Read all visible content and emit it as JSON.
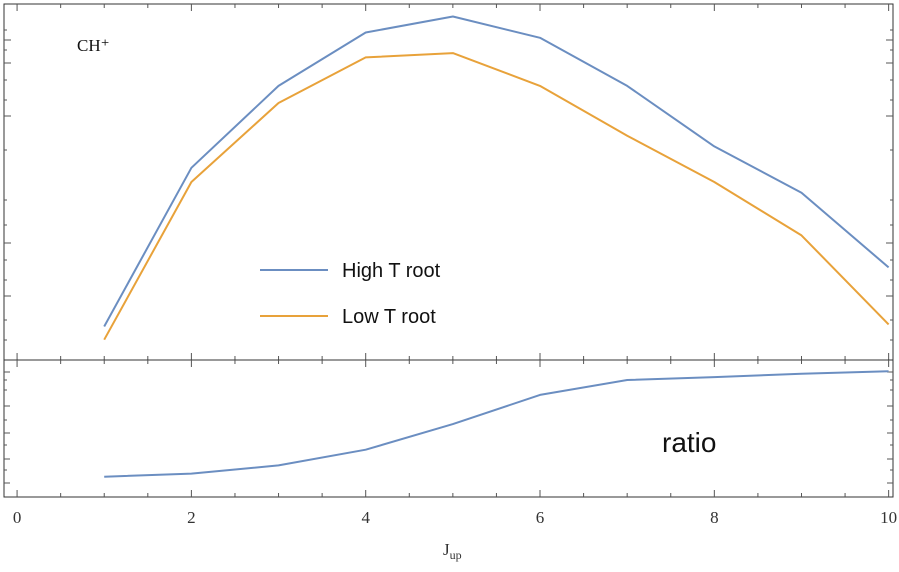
{
  "chart_data": [
    {
      "type": "line",
      "panel": "upper",
      "annotation": "CH⁺",
      "x": [
        1,
        2,
        3,
        4,
        5,
        6,
        7,
        8,
        9,
        10
      ],
      "xlim": [
        -0.15,
        10.05
      ],
      "ylim": [
        0,
        10
      ],
      "grid": false,
      "legend_position": "center",
      "series": [
        {
          "name": "High T root",
          "color": "#6b8ec1",
          "values": [
            0.94,
            5.4,
            7.7,
            9.2,
            9.65,
            9.05,
            7.7,
            6.0,
            4.7,
            2.6
          ]
        },
        {
          "name": "Low T root",
          "color": "#e8a23a",
          "values": [
            0.57,
            5.0,
            7.22,
            8.5,
            8.62,
            7.7,
            6.3,
            5.0,
            3.5,
            1.0
          ]
        }
      ]
    },
    {
      "type": "line",
      "panel": "lower",
      "annotation": "ratio",
      "xlabel": "J_up",
      "x": [
        1,
        2,
        3,
        4,
        5,
        6,
        7,
        8,
        9,
        10
      ],
      "xticks": [
        0,
        2,
        4,
        6,
        8,
        10
      ],
      "xlim": [
        -0.15,
        10.05
      ],
      "ylim": [
        0,
        1
      ],
      "grid": false,
      "series": [
        {
          "color": "#6b8ec1",
          "values": [
            0.148,
            0.171,
            0.231,
            0.345,
            0.532,
            0.745,
            0.854,
            0.875,
            0.9,
            0.918
          ]
        }
      ]
    }
  ]
}
